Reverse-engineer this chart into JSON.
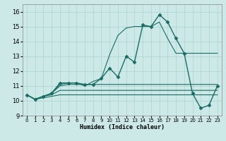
{
  "xlabel": "Humidex (Indice chaleur)",
  "bg_color": "#cce9e7",
  "grid_color": "#aad4d0",
  "line_color": "#1a6b63",
  "xlim": [
    -0.5,
    23.5
  ],
  "ylim": [
    9.0,
    16.5
  ],
  "yticks": [
    9,
    10,
    11,
    12,
    13,
    14,
    15,
    16
  ],
  "xticks": [
    0,
    1,
    2,
    3,
    4,
    5,
    6,
    7,
    8,
    9,
    10,
    11,
    12,
    13,
    14,
    15,
    16,
    17,
    18,
    19,
    20,
    21,
    22,
    23
  ],
  "series": [
    {
      "x": [
        0,
        1,
        2,
        3,
        4,
        5,
        6,
        7,
        8,
        9,
        10,
        11,
        12,
        13,
        14,
        15,
        16,
        17,
        18,
        19,
        20,
        21,
        22,
        23
      ],
      "y": [
        10.4,
        10.1,
        10.3,
        10.5,
        11.2,
        11.2,
        11.2,
        11.1,
        11.1,
        11.5,
        12.2,
        11.6,
        13.0,
        12.6,
        15.1,
        15.0,
        15.8,
        15.3,
        14.2,
        13.2,
        10.5,
        9.5,
        9.7,
        11.0
      ],
      "marker": "D",
      "markersize": 2.5,
      "linewidth": 1.0
    },
    {
      "x": [
        0,
        1,
        2,
        3,
        4,
        5,
        6,
        7,
        8,
        9,
        10,
        11,
        12,
        13,
        14,
        15,
        16,
        17,
        18,
        19,
        20,
        21,
        22,
        23
      ],
      "y": [
        10.4,
        10.1,
        10.3,
        10.5,
        11.1,
        11.2,
        11.2,
        11.0,
        11.3,
        11.5,
        13.1,
        14.4,
        14.9,
        15.0,
        15.0,
        15.0,
        15.3,
        14.2,
        13.2,
        13.2,
        13.2,
        13.2,
        13.2,
        13.2
      ],
      "marker": null,
      "markersize": 0,
      "linewidth": 0.8
    },
    {
      "x": [
        0,
        1,
        2,
        3,
        4,
        5,
        6,
        7,
        8,
        9,
        10,
        11,
        12,
        13,
        14,
        15,
        16,
        17,
        18,
        19,
        20,
        21,
        22,
        23
      ],
      "y": [
        10.4,
        10.1,
        10.3,
        10.5,
        11.0,
        11.1,
        11.1,
        11.1,
        11.1,
        11.1,
        11.1,
        11.1,
        11.1,
        11.1,
        11.1,
        11.1,
        11.1,
        11.1,
        11.1,
        11.1,
        11.1,
        11.1,
        11.1,
        11.1
      ],
      "marker": null,
      "markersize": 0,
      "linewidth": 0.8
    },
    {
      "x": [
        0,
        1,
        2,
        3,
        4,
        5,
        6,
        7,
        8,
        9,
        10,
        11,
        12,
        13,
        14,
        15,
        16,
        17,
        18,
        19,
        20,
        21,
        22,
        23
      ],
      "y": [
        10.4,
        10.1,
        10.3,
        10.4,
        10.7,
        10.7,
        10.7,
        10.7,
        10.7,
        10.7,
        10.7,
        10.7,
        10.7,
        10.7,
        10.7,
        10.7,
        10.7,
        10.7,
        10.7,
        10.7,
        10.7,
        10.7,
        10.7,
        10.7
      ],
      "marker": null,
      "markersize": 0,
      "linewidth": 0.8
    },
    {
      "x": [
        0,
        1,
        2,
        3,
        4,
        5,
        6,
        7,
        8,
        9,
        10,
        11,
        12,
        13,
        14,
        15,
        16,
        17,
        18,
        19,
        20,
        21,
        22,
        23
      ],
      "y": [
        10.4,
        10.1,
        10.2,
        10.3,
        10.4,
        10.4,
        10.4,
        10.4,
        10.4,
        10.4,
        10.4,
        10.4,
        10.4,
        10.4,
        10.4,
        10.4,
        10.4,
        10.4,
        10.4,
        10.4,
        10.4,
        10.4,
        10.4,
        10.4
      ],
      "marker": null,
      "markersize": 0,
      "linewidth": 0.8
    }
  ]
}
